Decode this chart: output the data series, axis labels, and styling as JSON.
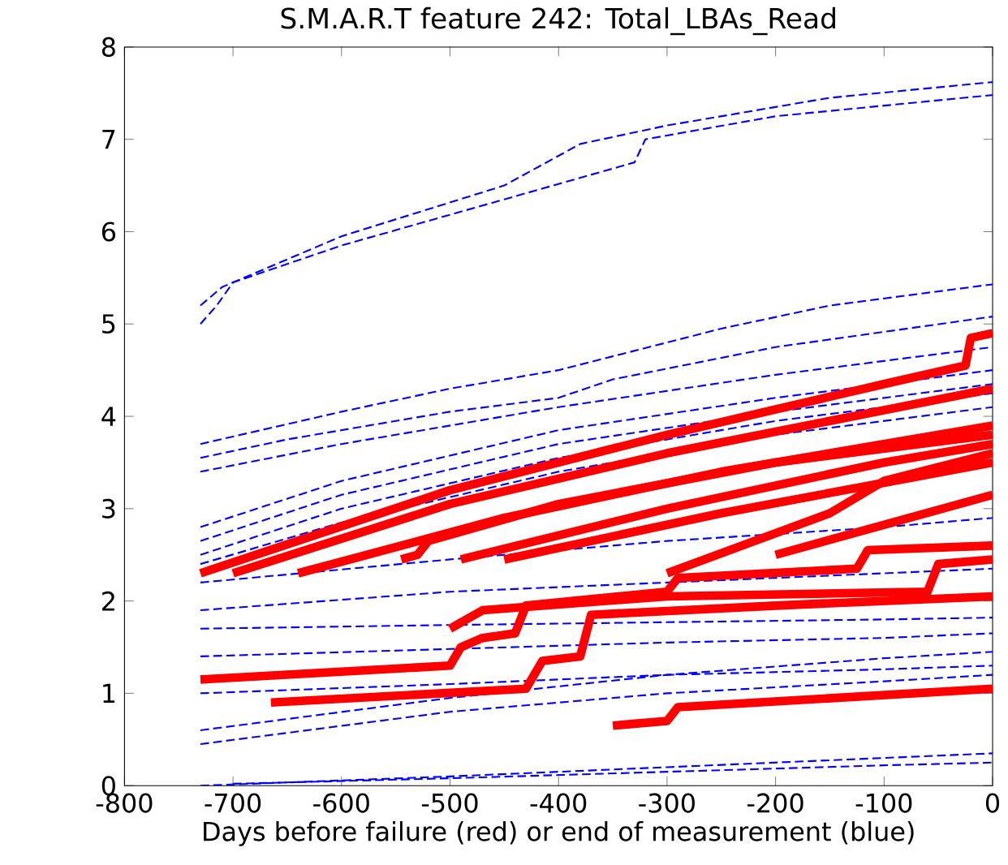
{
  "chart_data": {
    "type": "line",
    "title": "S.M.A.R.T feature 242:  Total_LBAs_Read",
    "xlabel": "Days before failure (red) or end of measurement (blue)",
    "xlim": [
      -800,
      0
    ],
    "ylim": [
      0,
      8
    ],
    "xticks": [
      -800,
      -700,
      -600,
      -500,
      -400,
      -300,
      -200,
      -100,
      0
    ],
    "yticks": [
      0,
      1,
      2,
      3,
      4,
      5,
      6,
      7,
      8
    ],
    "series": [
      {
        "color": "#0000ff",
        "line_style": "dashed",
        "x": [
          -730,
          -710,
          -600,
          -450,
          -380,
          -300,
          -150,
          0
        ],
        "values": [
          5.2,
          5.4,
          5.95,
          6.5,
          6.95,
          7.15,
          7.45,
          7.62
        ]
      },
      {
        "color": "#0000ff",
        "line_style": "dashed",
        "x": [
          -730,
          -715,
          -700,
          -600,
          -450,
          -330,
          -320,
          -200,
          0
        ],
        "values": [
          5.0,
          5.2,
          5.45,
          5.85,
          6.35,
          6.75,
          7.0,
          7.25,
          7.48
        ]
      },
      {
        "color": "#0000ff",
        "line_style": "dashed",
        "x": [
          -730,
          -600,
          -500,
          -400,
          -250,
          -150,
          0
        ],
        "values": [
          3.7,
          4.05,
          4.3,
          4.5,
          4.95,
          5.2,
          5.43
        ]
      },
      {
        "color": "#0000ff",
        "line_style": "dashed",
        "x": [
          -730,
          -650,
          -500,
          -400,
          -350,
          -200,
          0
        ],
        "values": [
          3.55,
          3.75,
          4.05,
          4.2,
          4.4,
          4.75,
          5.08
        ]
      },
      {
        "color": "#0000ff",
        "line_style": "dashed",
        "x": [
          -730,
          -600,
          -400,
          -200,
          0
        ],
        "values": [
          3.4,
          3.7,
          4.1,
          4.45,
          4.75
        ]
      },
      {
        "color": "#0000ff",
        "line_style": "dashed",
        "x": [
          -730,
          -600,
          -400,
          -200,
          0
        ],
        "values": [
          2.8,
          3.3,
          3.85,
          4.2,
          4.5
        ]
      },
      {
        "color": "#0000ff",
        "line_style": "dashed",
        "x": [
          -730,
          -600,
          -400,
          -200,
          0
        ],
        "values": [
          2.65,
          3.15,
          3.7,
          4.05,
          4.35
        ]
      },
      {
        "color": "#0000ff",
        "line_style": "dashed",
        "x": [
          -730,
          -600,
          -400,
          -200,
          0
        ],
        "values": [
          2.5,
          3.0,
          3.55,
          3.95,
          4.25
        ]
      },
      {
        "color": "#0000ff",
        "line_style": "dashed",
        "x": [
          -730,
          -600,
          -400,
          -200,
          0
        ],
        "values": [
          2.4,
          2.85,
          3.4,
          3.8,
          4.1
        ]
      },
      {
        "color": "#0000ff",
        "line_style": "dashed",
        "x": [
          -730,
          -500,
          -300,
          -100,
          0
        ],
        "values": [
          2.2,
          2.45,
          2.65,
          2.8,
          2.9
        ]
      },
      {
        "color": "#0000ff",
        "line_style": "dashed",
        "x": [
          -730,
          -500,
          -300,
          -100,
          0
        ],
        "values": [
          1.9,
          2.1,
          2.2,
          2.3,
          2.35
        ]
      },
      {
        "color": "#0000ff",
        "line_style": "dashed",
        "x": [
          -730,
          -500,
          -300,
          -100,
          0
        ],
        "values": [
          1.7,
          1.74,
          1.77,
          1.8,
          1.82
        ]
      },
      {
        "color": "#0000ff",
        "line_style": "dashed",
        "x": [
          -730,
          -500,
          -300,
          -100,
          0
        ],
        "values": [
          1.4,
          1.48,
          1.55,
          1.6,
          1.65
        ]
      },
      {
        "color": "#0000ff",
        "line_style": "dashed",
        "x": [
          -730,
          -500,
          -300,
          -100,
          0
        ],
        "values": [
          1.0,
          1.1,
          1.2,
          1.26,
          1.3
        ]
      },
      {
        "color": "#0000ff",
        "line_style": "dashed",
        "x": [
          -730,
          -500,
          -300,
          -100,
          0
        ],
        "values": [
          0.6,
          0.95,
          1.2,
          1.38,
          1.45
        ]
      },
      {
        "color": "#0000ff",
        "line_style": "dashed",
        "x": [
          -730,
          -500,
          -300,
          -100,
          0
        ],
        "values": [
          0.45,
          0.8,
          1.0,
          1.13,
          1.2
        ]
      },
      {
        "color": "#0000ff",
        "line_style": "dashed",
        "x": [
          -730,
          -500,
          -300,
          -100,
          0
        ],
        "values": [
          0.0,
          0.1,
          0.2,
          0.3,
          0.35
        ]
      },
      {
        "color": "#0000ff",
        "line_style": "dashed",
        "x": [
          -700,
          -500,
          -300,
          -100,
          0
        ],
        "values": [
          0.02,
          0.08,
          0.15,
          0.22,
          0.25
        ]
      },
      {
        "color": "#ff0000",
        "line_style": "solid",
        "x": [
          -730,
          -500,
          -300,
          -100,
          -25,
          -20,
          0
        ],
        "values": [
          2.3,
          3.2,
          3.8,
          4.35,
          4.55,
          4.85,
          4.9
        ]
      },
      {
        "color": "#ff0000",
        "line_style": "solid",
        "x": [
          -700,
          -500,
          -300,
          0
        ],
        "values": [
          2.3,
          3.05,
          3.6,
          4.3
        ]
      },
      {
        "color": "#ff0000",
        "line_style": "solid",
        "x": [
          -640,
          -450,
          -250,
          0
        ],
        "values": [
          2.3,
          2.9,
          3.4,
          3.9
        ]
      },
      {
        "color": "#ff0000",
        "line_style": "solid",
        "x": [
          -545,
          -530,
          -520,
          -400,
          -200,
          0
        ],
        "values": [
          2.45,
          2.5,
          2.65,
          3.05,
          3.5,
          3.8
        ]
      },
      {
        "color": "#ff0000",
        "line_style": "solid",
        "x": [
          -490,
          -300,
          -100,
          0
        ],
        "values": [
          2.45,
          3.0,
          3.5,
          3.7
        ]
      },
      {
        "color": "#ff0000",
        "line_style": "solid",
        "x": [
          -450,
          -250,
          0
        ],
        "values": [
          2.45,
          2.95,
          3.5
        ]
      },
      {
        "color": "#ff0000",
        "line_style": "solid",
        "x": [
          -300,
          -150,
          -100,
          0
        ],
        "values": [
          2.3,
          2.95,
          3.3,
          3.6
        ]
      },
      {
        "color": "#ff0000",
        "line_style": "solid",
        "x": [
          -200,
          0
        ],
        "values": [
          2.5,
          3.15
        ]
      },
      {
        "color": "#ff0000",
        "line_style": "solid",
        "x": [
          -730,
          -500,
          -490,
          -470,
          -440,
          -430,
          -300,
          -290,
          -125,
          -115,
          0
        ],
        "values": [
          1.15,
          1.3,
          1.5,
          1.6,
          1.65,
          1.95,
          2.1,
          2.25,
          2.35,
          2.55,
          2.6
        ]
      },
      {
        "color": "#ff0000",
        "line_style": "solid",
        "x": [
          -500,
          -470,
          -300,
          -60,
          -50,
          0
        ],
        "values": [
          1.7,
          1.9,
          2.05,
          2.1,
          2.4,
          2.45
        ]
      },
      {
        "color": "#ff0000",
        "line_style": "solid",
        "x": [
          -665,
          -430,
          -415,
          -380,
          -370,
          -200,
          0
        ],
        "values": [
          0.9,
          1.05,
          1.35,
          1.4,
          1.85,
          1.95,
          2.05
        ]
      },
      {
        "color": "#ff0000",
        "line_style": "solid",
        "x": [
          -350,
          -300,
          -290,
          0
        ],
        "values": [
          0.65,
          0.7,
          0.85,
          1.05
        ]
      }
    ]
  }
}
